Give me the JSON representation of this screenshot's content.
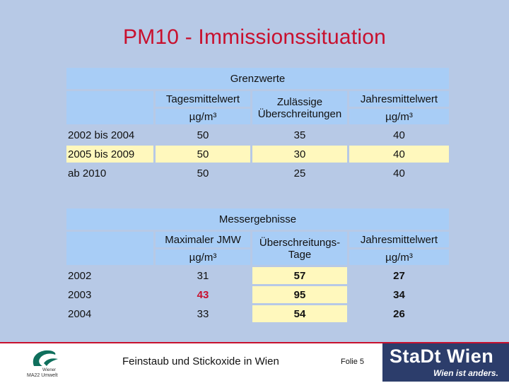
{
  "slide_title": "PM10 - Immissionssituation",
  "table1": {
    "header": "Grenzwerte",
    "col1": {
      "name": "Tagesmittelwert",
      "unit": "µg/m³"
    },
    "col2": {
      "name_line1": "Zulässige",
      "name_line2": "Überschreitungen"
    },
    "col3": {
      "name": "Jahresmittelwert",
      "unit": "µg/m³"
    },
    "rows": [
      {
        "label": "2002 bis 2004",
        "v1": "50",
        "v2": "35",
        "v3": "40"
      },
      {
        "label": "2005 bis 2009",
        "v1": "50",
        "v2": "30",
        "v3": "40"
      },
      {
        "label": "ab 2010",
        "v1": "50",
        "v2": "25",
        "v3": "40"
      }
    ]
  },
  "table2": {
    "header": "Messergebnisse",
    "col1": {
      "name": "Maximaler JMW",
      "unit": "µg/m³"
    },
    "col2": {
      "name_line1": "Überschreitungs-",
      "name_line2": "Tage"
    },
    "col3": {
      "name": "Jahresmittelwert",
      "unit": "µg/m³"
    },
    "rows": [
      {
        "label": "2002",
        "v1": "31",
        "v2": "57",
        "v3": "27"
      },
      {
        "label": "2003",
        "v1": "43",
        "v2": "95",
        "v3": "34"
      },
      {
        "label": "2004",
        "v1": "33",
        "v2": "54",
        "v3": "26"
      }
    ]
  },
  "footer": {
    "text": "Feinstaub und Stickoxide in Wien",
    "folie": "Folie 5",
    "logo_small": "Wiener",
    "logo_umwelt": "MA22 Umwelt",
    "brand_name": "StaDt Wien",
    "brand_tag": "Wien ist anders."
  },
  "colors": {
    "title": "#c8102e",
    "header_bg": "#a8cdf6",
    "highlight": "#fff8bd",
    "brand_bg": "#2c3d6b"
  }
}
